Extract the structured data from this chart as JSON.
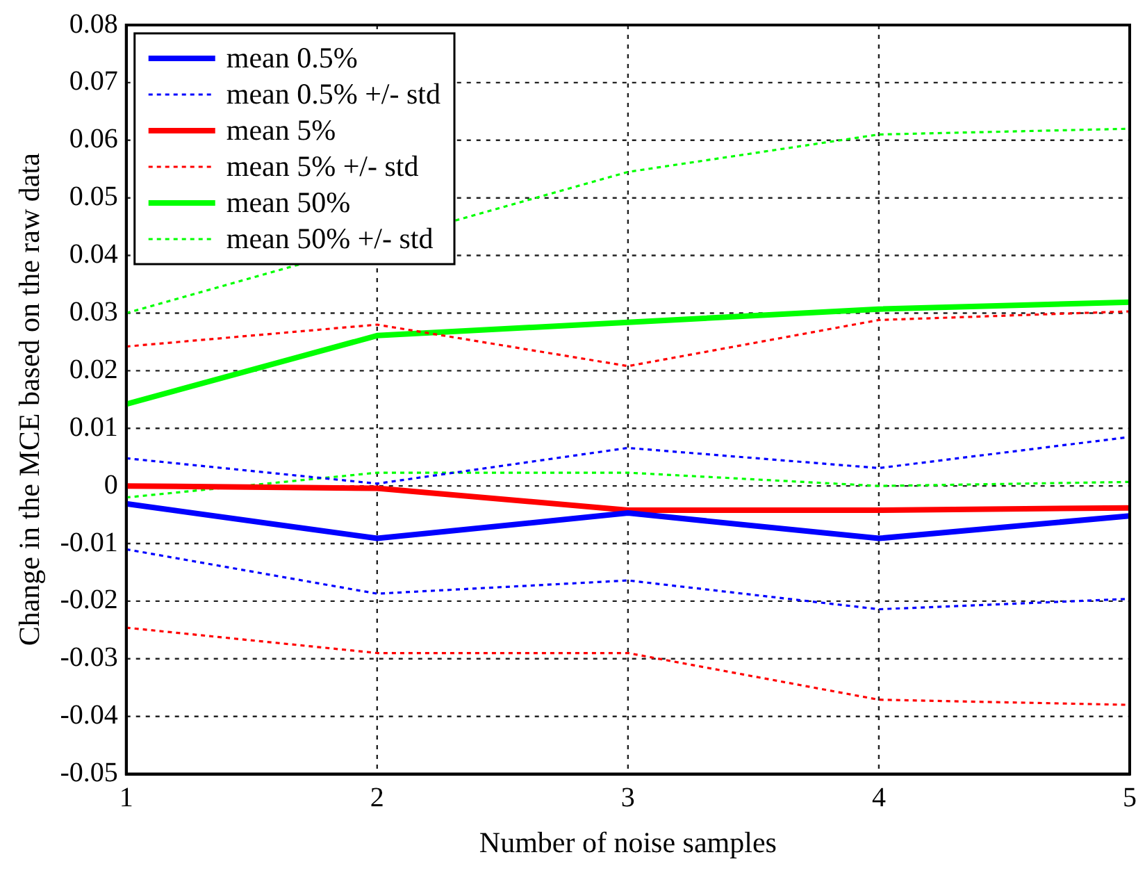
{
  "chart_data": {
    "type": "line",
    "xlabel": "Number of noise samples",
    "ylabel": "Change in the MCE based on the raw data",
    "x": [
      1,
      2,
      3,
      4,
      5
    ],
    "xlim": [
      1,
      5
    ],
    "xticks": [
      1,
      2,
      3,
      4,
      5
    ],
    "ylim": [
      -0.05,
      0.08
    ],
    "yticks": [
      -0.05,
      -0.04,
      -0.03,
      -0.02,
      -0.01,
      0,
      0.01,
      0.02,
      0.03,
      0.04,
      0.05,
      0.06,
      0.07,
      0.08
    ],
    "grid": true,
    "legend": "top left",
    "marker": "none",
    "series": [
      {
        "name": "mean 0.5%",
        "color": "#0000ff",
        "line_style": "solid",
        "values": [
          -0.0031,
          -0.0091,
          -0.0047,
          -0.0091,
          -0.0052
        ]
      },
      {
        "name": "mean 0.5% +/- std",
        "color": "#0000ff",
        "line_style": "dotted",
        "values": [
          0.0048,
          0.0004,
          0.0066,
          0.0031,
          0.0085
        ]
      },
      {
        "color": "#0000ff",
        "line_style": "dotted",
        "values": [
          -0.011,
          -0.0187,
          -0.0164,
          -0.0214,
          -0.0196
        ]
      },
      {
        "name": "mean 5%",
        "color": "#ff0000",
        "line_style": "solid",
        "values": [
          0,
          -0.0004,
          -0.0042,
          -0.0042,
          -0.0038
        ]
      },
      {
        "name": "mean 5% +/- std",
        "color": "#ff0000",
        "line_style": "dotted",
        "values": [
          0.0242,
          0.028,
          0.0208,
          0.0288,
          0.0303
        ]
      },
      {
        "color": "#ff0000",
        "line_style": "dotted",
        "values": [
          -0.0246,
          -0.029,
          -0.029,
          -0.0371,
          -0.038
        ]
      },
      {
        "name": "mean 50%",
        "color": "#00ff00",
        "line_style": "solid",
        "values": [
          0.0142,
          0.0261,
          0.0284,
          0.0307,
          0.0319
        ]
      },
      {
        "name": "mean 50% +/- std",
        "color": "#00ff00",
        "line_style": "dotted",
        "values": [
          0.03,
          null,
          0.0545,
          0.061,
          0.062
        ]
      },
      {
        "color": "#00ff00",
        "line_style": "dotted",
        "values": [
          -0.002,
          0.0023,
          0.0023,
          0,
          0.0007
        ]
      }
    ]
  }
}
